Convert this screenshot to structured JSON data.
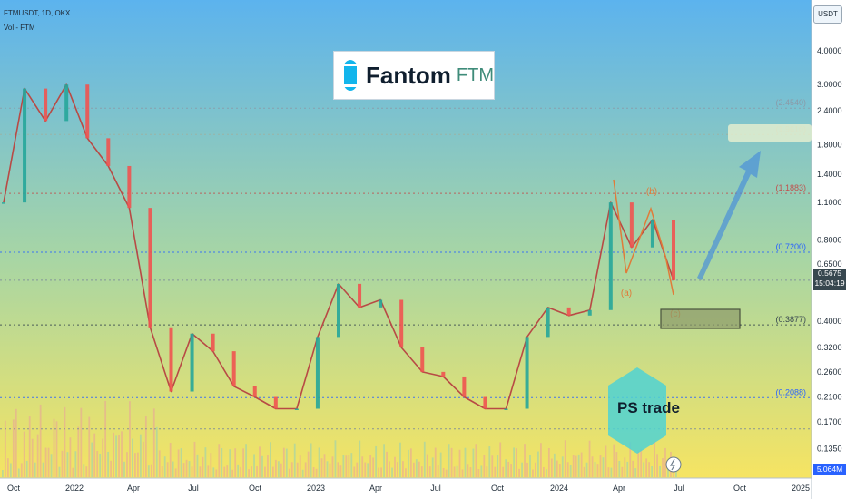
{
  "header": {
    "symbol_line": "FTMUSDT, 1D, OKX",
    "volume_line": "Vol - FTM"
  },
  "logo": {
    "name": "Fantom",
    "ticker": "FTM"
  },
  "watermark": {
    "text": "PS trade"
  },
  "price_axis": {
    "currency": "USDT",
    "ticks": [
      "4.0000",
      "3.0000",
      "2.4000",
      "1.8000",
      "1.4000",
      "1.1000",
      "0.8000",
      "0.6500",
      "0.4000",
      "0.3200",
      "0.2600",
      "0.2100",
      "0.1700",
      "0.1350"
    ],
    "current_price": "0.5675",
    "countdown": "15:04:19",
    "volume_value": "5.064M"
  },
  "time_axis": {
    "labels": [
      "Oct",
      "2022",
      "Apr",
      "Jul",
      "Oct",
      "2023",
      "Apr",
      "Jul",
      "Oct",
      "2024",
      "Apr",
      "Jul",
      "Oct",
      "2025"
    ]
  },
  "fib_levels": [
    {
      "label": "(2.4540)",
      "value": 2.454,
      "color": "#8b9aa8"
    },
    {
      "label": "(1.9610)",
      "value": 1.961,
      "color": "#9fb2a0"
    },
    {
      "label": "(1.1883)",
      "value": 1.1883,
      "color": "#c0504d"
    },
    {
      "label": "(0.7200)",
      "value": 0.72,
      "color": "#2962ff"
    },
    {
      "label": "",
      "value": 0.5675,
      "color": "#7a8a99"
    },
    {
      "label": "(0.3877)",
      "value": 0.3877,
      "color": "#37474f"
    },
    {
      "label": "(0.2088)",
      "value": 0.2088,
      "color": "#2962ff"
    },
    {
      "label": "",
      "value": 0.16,
      "color": "#7a8a99"
    }
  ],
  "wave_labels": [
    {
      "text": "(b)",
      "color": "#e07b39"
    },
    {
      "text": "(a)",
      "color": "#e07b39"
    },
    {
      "text": "(c)",
      "color": "#e07b39"
    }
  ],
  "colors": {
    "candle_up": "#26a69a",
    "candle_down": "#ef5350",
    "wave_line": "#e07b39",
    "arrow": "#4a90d9",
    "target_zone": "#e8f0d0",
    "support_zone": "#8d9a6a"
  },
  "chart_data": {
    "type": "line",
    "title": "FTMUSDT, 1D, OKX",
    "xlabel": "",
    "ylabel": "",
    "y_scale": "log",
    "ylim": [
      0.12,
      5.2
    ],
    "x": [
      "2021-10",
      "2021-11",
      "2021-12",
      "2022-01",
      "2022-02",
      "2022-03",
      "2022-04",
      "2022-05",
      "2022-06",
      "2022-07",
      "2022-08",
      "2022-09",
      "2022-10",
      "2022-11",
      "2022-12",
      "2023-01",
      "2023-02",
      "2023-03",
      "2023-04",
      "2023-05",
      "2023-06",
      "2023-07",
      "2023-08",
      "2023-09",
      "2023-10",
      "2023-11",
      "2023-12",
      "2024-01",
      "2024-02",
      "2024-03",
      "2024-04",
      "2024-05",
      "2024-06"
    ],
    "series": [
      {
        "name": "",
        "values": [
          1.1,
          2.9,
          2.2,
          3.0,
          1.9,
          1.5,
          1.05,
          0.38,
          0.22,
          0.36,
          0.31,
          0.23,
          0.21,
          0.19,
          0.19,
          0.35,
          0.55,
          0.45,
          0.48,
          0.32,
          0.26,
          0.25,
          0.21,
          0.19,
          0.19,
          0.35,
          0.45,
          0.42,
          0.44,
          1.1,
          0.75,
          0.95,
          0.5675
        ]
      }
    ]
  }
}
